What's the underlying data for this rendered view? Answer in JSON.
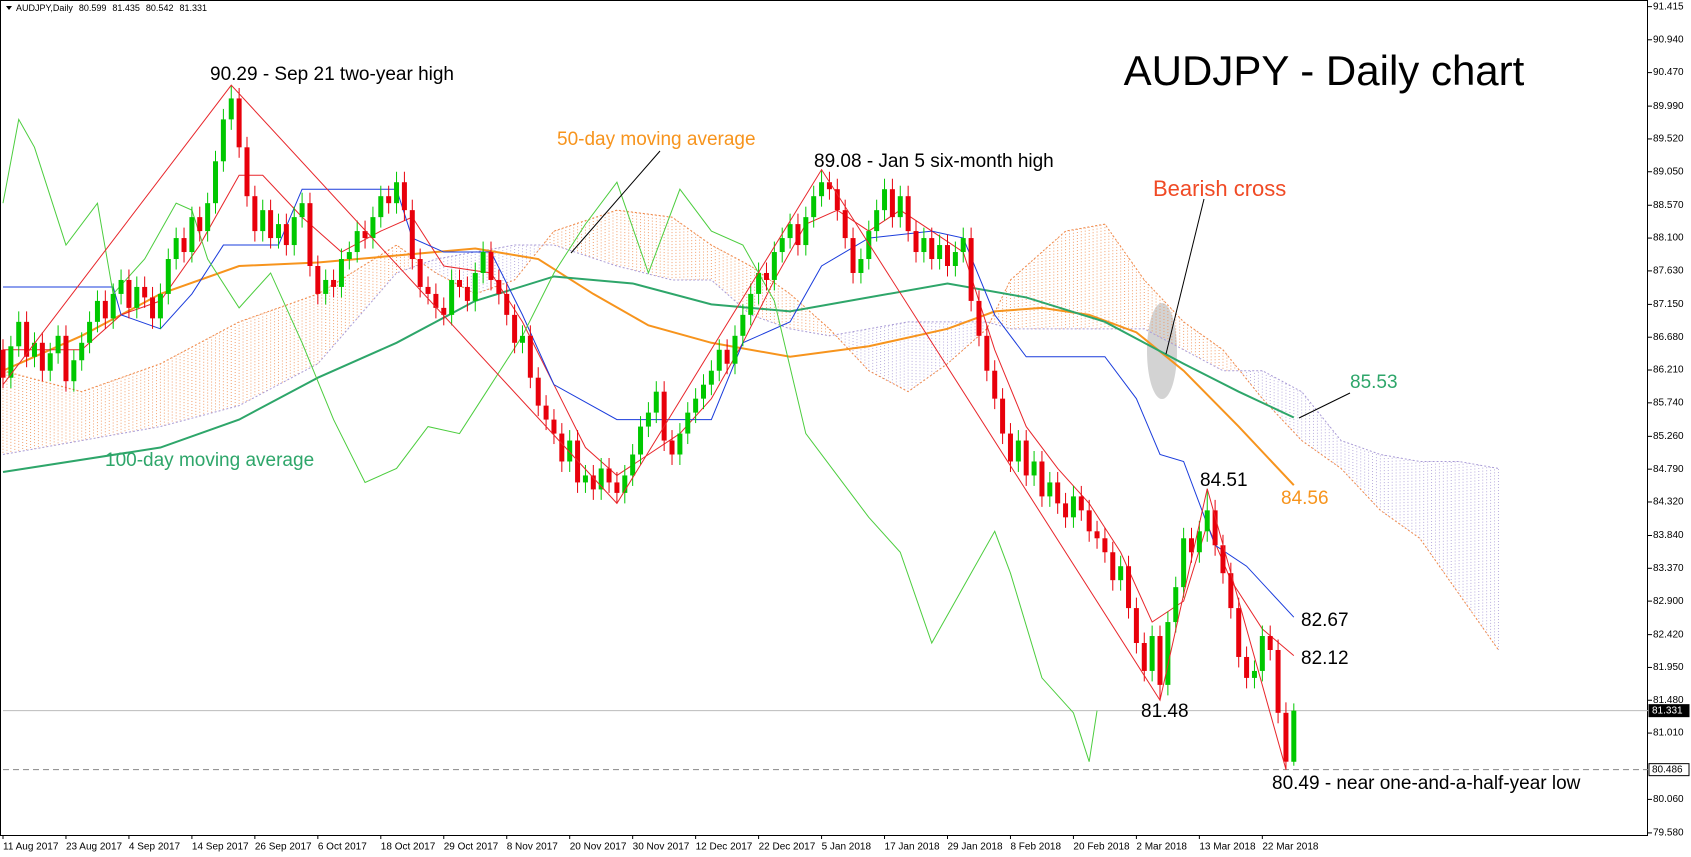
{
  "chart_data": {
    "type": "candlestick",
    "symbol": "AUDJPY,Daily",
    "title": "AUDJPY - Daily chart",
    "up_color": "#00c800",
    "down_color": "#e8000b",
    "open": [
      86.5,
      86.1,
      86.55,
      86.9,
      86.4,
      86.6,
      86.2,
      86.45,
      86.7,
      86.05,
      86.35,
      86.6,
      86.9,
      87.2,
      86.95,
      87.3,
      87.5,
      87.1,
      87.4,
      87.25,
      86.95,
      87.3,
      87.8,
      88.1,
      87.9,
      88.4,
      88.2,
      88.6,
      89.2,
      89.8,
      90.1,
      89.4,
      88.7,
      88.2,
      88.5,
      88.1,
      88.3,
      88.0,
      88.4,
      88.6,
      87.7,
      87.3,
      87.5,
      87.4,
      87.8,
      87.9,
      88.2,
      88.1,
      88.4,
      88.7,
      88.6,
      88.9,
      88.5,
      87.8,
      87.4,
      87.3,
      87.1,
      87.0,
      87.5,
      87.4,
      87.2,
      87.6,
      87.9,
      87.5,
      87.3,
      87.0,
      86.6,
      86.7,
      86.1,
      85.7,
      85.5,
      85.3,
      84.9,
      85.2,
      84.6,
      84.7,
      84.5,
      84.8,
      84.6,
      84.45,
      84.7,
      85.0,
      85.4,
      85.6,
      85.9,
      85.2,
      85.0,
      85.3,
      85.6,
      85.8,
      86.0,
      86.2,
      86.5,
      86.3,
      86.7,
      87.0,
      87.3,
      87.6,
      87.5,
      87.9,
      88.1,
      88.3,
      88.0,
      88.4,
      88.7,
      88.9,
      88.8,
      88.5,
      88.1,
      87.6,
      87.8,
      88.2,
      88.5,
      88.8,
      88.4,
      88.7,
      88.2,
      87.9,
      88.1,
      87.8,
      88.0,
      87.7,
      87.9,
      88.1,
      87.2,
      86.7,
      86.2,
      85.8,
      85.3,
      84.9,
      85.2,
      84.7,
      84.9,
      84.4,
      84.6,
      84.3,
      84.1,
      84.4,
      84.2,
      83.9,
      83.8,
      83.6,
      83.2,
      83.4,
      82.8,
      82.3,
      81.9,
      82.4,
      81.7,
      82.6,
      83.1,
      83.8,
      83.6,
      83.9,
      84.2,
      83.7,
      83.3,
      82.8,
      82.1,
      81.8,
      81.9,
      82.4,
      82.2,
      81.3,
      80.599
    ],
    "high": [
      86.65,
      86.7,
      87.05,
      87.05,
      86.75,
      86.75,
      86.6,
      86.85,
      86.85,
      86.5,
      86.75,
      87.05,
      87.35,
      87.35,
      87.45,
      87.65,
      87.65,
      87.55,
      87.55,
      87.4,
      87.45,
      87.95,
      88.25,
      88.25,
      88.55,
      88.55,
      88.75,
      89.35,
      89.95,
      90.29,
      90.25,
      89.55,
      88.85,
      88.65,
      88.65,
      88.45,
      88.45,
      88.55,
      88.75,
      88.75,
      87.85,
      87.65,
      87.65,
      87.95,
      88.05,
      88.35,
      88.35,
      88.55,
      88.85,
      88.85,
      89.05,
      89.05,
      88.65,
      87.95,
      87.55,
      87.45,
      87.25,
      87.65,
      87.65,
      87.55,
      87.75,
      88.05,
      88.05,
      87.65,
      87.45,
      87.15,
      86.85,
      86.85,
      86.25,
      85.85,
      85.65,
      85.45,
      85.35,
      85.35,
      84.85,
      84.85,
      84.95,
      84.95,
      84.75,
      84.85,
      85.15,
      85.55,
      85.75,
      86.05,
      86.05,
      85.35,
      85.45,
      85.75,
      85.95,
      86.15,
      86.35,
      86.65,
      86.65,
      86.85,
      87.15,
      87.45,
      87.75,
      87.75,
      88.05,
      88.25,
      88.45,
      88.45,
      88.55,
      88.85,
      89.08,
      89.05,
      88.95,
      88.65,
      88.25,
      87.95,
      88.35,
      88.65,
      88.95,
      88.95,
      88.85,
      88.85,
      88.35,
      88.25,
      88.25,
      88.15,
      88.15,
      88.05,
      88.25,
      88.25,
      87.35,
      86.85,
      86.35,
      85.95,
      85.45,
      85.35,
      85.35,
      85.05,
      85.05,
      84.75,
      84.75,
      84.45,
      84.55,
      84.55,
      84.35,
      84.05,
      83.95,
      83.75,
      83.55,
      83.55,
      82.95,
      82.45,
      82.55,
      82.55,
      82.75,
      83.25,
      83.95,
      83.95,
      84.05,
      84.51,
      84.35,
      83.85,
      83.45,
      82.95,
      82.25,
      82.05,
      82.55,
      82.55,
      82.35,
      81.45,
      81.435
    ],
    "low": [
      85.95,
      85.95,
      86.4,
      86.25,
      86.25,
      86.05,
      86.05,
      86.3,
      85.9,
      85.9,
      86.2,
      86.45,
      86.75,
      86.8,
      86.8,
      87.15,
      86.95,
      86.95,
      87.1,
      86.8,
      86.8,
      87.15,
      87.65,
      87.75,
      87.75,
      88.05,
      88.05,
      88.45,
      89.05,
      89.65,
      89.25,
      88.55,
      88.05,
      88.05,
      87.95,
      87.95,
      87.85,
      87.85,
      88.25,
      87.55,
      87.15,
      87.15,
      87.25,
      87.25,
      87.65,
      87.75,
      87.95,
      87.95,
      88.25,
      88.45,
      88.45,
      88.35,
      87.65,
      87.25,
      87.15,
      86.95,
      86.85,
      86.85,
      87.25,
      87.05,
      87.05,
      87.45,
      87.35,
      87.15,
      86.85,
      86.45,
      86.45,
      85.95,
      85.55,
      85.35,
      85.15,
      84.75,
      84.75,
      84.45,
      84.45,
      84.35,
      84.35,
      84.45,
      84.3,
      84.3,
      84.55,
      84.85,
      85.25,
      85.45,
      85.05,
      84.85,
      84.85,
      85.15,
      85.45,
      85.65,
      85.85,
      86.05,
      86.15,
      86.15,
      86.55,
      86.85,
      87.15,
      87.35,
      87.35,
      87.75,
      87.95,
      87.85,
      87.85,
      88.25,
      88.55,
      88.65,
      88.35,
      87.95,
      87.45,
      87.45,
      87.65,
      88.05,
      88.35,
      88.25,
      88.25,
      88.05,
      87.75,
      87.75,
      87.65,
      87.65,
      87.55,
      87.55,
      87.75,
      87.05,
      86.55,
      86.05,
      85.65,
      85.15,
      84.75,
      84.75,
      84.55,
      84.55,
      84.25,
      84.25,
      84.15,
      83.95,
      83.95,
      84.05,
      83.75,
      83.65,
      83.45,
      83.05,
      83.05,
      82.65,
      82.15,
      81.75,
      81.75,
      81.48,
      81.55,
      82.45,
      82.95,
      83.45,
      83.45,
      83.75,
      83.55,
      83.15,
      82.65,
      81.95,
      81.65,
      81.65,
      81.75,
      82.05,
      81.15,
      80.486,
      80.542
    ],
    "close": [
      86.1,
      86.55,
      86.9,
      86.4,
      86.6,
      86.2,
      86.45,
      86.7,
      86.05,
      86.35,
      86.6,
      86.9,
      87.2,
      86.95,
      87.3,
      87.5,
      87.1,
      87.4,
      87.25,
      86.95,
      87.3,
      87.8,
      88.1,
      87.9,
      88.4,
      88.2,
      88.6,
      89.2,
      89.8,
      90.1,
      89.4,
      88.7,
      88.2,
      88.5,
      88.1,
      88.3,
      88.0,
      88.4,
      88.6,
      87.7,
      87.3,
      87.5,
      87.4,
      87.8,
      87.9,
      88.2,
      88.1,
      88.4,
      88.7,
      88.6,
      88.9,
      88.5,
      87.8,
      87.4,
      87.3,
      87.1,
      87.0,
      87.5,
      87.4,
      87.2,
      87.6,
      87.9,
      87.5,
      87.3,
      87.0,
      86.6,
      86.7,
      86.1,
      85.7,
      85.5,
      85.3,
      84.9,
      85.2,
      84.6,
      84.7,
      84.5,
      84.8,
      84.6,
      84.45,
      84.7,
      85.0,
      85.4,
      85.6,
      85.9,
      85.2,
      85.0,
      85.3,
      85.6,
      85.8,
      86.0,
      86.2,
      86.5,
      86.3,
      86.7,
      87.0,
      87.3,
      87.6,
      87.5,
      87.9,
      88.1,
      88.3,
      88.0,
      88.4,
      88.7,
      88.9,
      88.8,
      88.5,
      88.1,
      87.6,
      87.8,
      88.2,
      88.5,
      88.8,
      88.4,
      88.7,
      88.2,
      87.9,
      88.1,
      87.8,
      88.0,
      87.7,
      87.9,
      88.1,
      87.2,
      86.7,
      86.2,
      85.8,
      85.3,
      84.9,
      85.2,
      84.7,
      84.9,
      84.4,
      84.6,
      84.3,
      84.1,
      84.4,
      84.2,
      83.9,
      83.8,
      83.6,
      83.2,
      83.4,
      82.8,
      82.3,
      81.9,
      82.4,
      81.7,
      82.6,
      83.1,
      83.8,
      83.6,
      83.9,
      84.2,
      83.7,
      83.3,
      82.8,
      82.1,
      81.8,
      81.9,
      82.4,
      82.2,
      81.3,
      80.6,
      81.331
    ],
    "lines": [
      {
        "color": "#f7941d",
        "width": 2,
        "x": [
          0,
          10,
          20,
          30,
          40,
          50,
          60,
          68,
          75,
          82,
          90,
          100,
          110,
          120,
          126,
          132,
          138,
          144,
          150,
          157,
          164
        ],
        "values": [
          86.2,
          86.7,
          87.3,
          87.7,
          87.75,
          87.85,
          87.95,
          87.8,
          87.3,
          86.85,
          86.6,
          86.4,
          86.55,
          86.8,
          87.05,
          87.1,
          87.0,
          86.75,
          86.2,
          85.4,
          84.56
        ]
      },
      {
        "color": "#2ea66a",
        "width": 2,
        "x": [
          0,
          20,
          30,
          40,
          50,
          60,
          70,
          80,
          90,
          100,
          110,
          120,
          130,
          140,
          150,
          157,
          164
        ],
        "values": [
          84.75,
          85.1,
          85.5,
          86.1,
          86.6,
          87.2,
          87.55,
          87.45,
          87.15,
          87.05,
          87.25,
          87.45,
          87.25,
          86.9,
          86.3,
          85.9,
          85.53
        ]
      },
      {
        "color": "#e8262b",
        "width": 1,
        "x": [
          0,
          5,
          10,
          15,
          20,
          25,
          30,
          33,
          38,
          43,
          48,
          52,
          56,
          62,
          66,
          70,
          74,
          78,
          82,
          86,
          90,
          94,
          98,
          102,
          106,
          110,
          114,
          118,
          122,
          126,
          130,
          134,
          138,
          142,
          146,
          150,
          153,
          156,
          160,
          164
        ],
        "values": [
          86.5,
          86.5,
          86.5,
          87.0,
          87.2,
          88.0,
          89.0,
          89.0,
          88.4,
          87.9,
          88.2,
          88.4,
          87.7,
          87.6,
          86.9,
          86.0,
          85.1,
          84.7,
          85.0,
          85.3,
          85.8,
          86.6,
          87.5,
          88.3,
          88.5,
          88.2,
          88.5,
          88.2,
          87.9,
          86.5,
          85.4,
          84.8,
          84.3,
          83.6,
          82.6,
          82.9,
          84.0,
          83.2,
          82.5,
          82.12
        ]
      },
      {
        "color": "#1a3cdc",
        "width": 1,
        "x": [
          0,
          14,
          15,
          20,
          24,
          28,
          35,
          38,
          50,
          52,
          56,
          62,
          66,
          70,
          78,
          90,
          94,
          100,
          104,
          110,
          118,
          122,
          126,
          130,
          140,
          144,
          147,
          150,
          154,
          158,
          164
        ],
        "values": [
          87.4,
          87.4,
          87.0,
          86.8,
          87.3,
          88.0,
          88.0,
          88.8,
          88.8,
          88.1,
          87.9,
          87.9,
          87.0,
          86.0,
          85.5,
          85.5,
          86.6,
          86.9,
          87.7,
          88.1,
          88.2,
          88.1,
          87.0,
          86.4,
          86.4,
          85.8,
          85.0,
          84.9,
          83.7,
          83.4,
          82.67
        ]
      },
      {
        "color": "#4ccd3e",
        "width": 1,
        "x": [
          0,
          2,
          4,
          8,
          12,
          14,
          18,
          22,
          24,
          26,
          30,
          34,
          38,
          42,
          46,
          50,
          54,
          58,
          62,
          66,
          70,
          74,
          78,
          82,
          86,
          90,
          94,
          98,
          102,
          106,
          110,
          114,
          118,
          122,
          126,
          128,
          132,
          136,
          138,
          139
        ],
        "values": [
          88.6,
          89.8,
          89.4,
          88.0,
          88.6,
          87.3,
          87.8,
          88.6,
          88.5,
          87.8,
          87.1,
          87.6,
          86.6,
          85.5,
          84.6,
          84.8,
          85.4,
          85.3,
          86.0,
          86.7,
          87.6,
          88.3,
          88.9,
          87.6,
          88.8,
          88.2,
          88.0,
          87.2,
          85.3,
          84.7,
          84.1,
          83.6,
          82.3,
          83.1,
          83.9,
          83.3,
          81.8,
          81.3,
          80.6,
          81.33
        ]
      }
    ],
    "cloud": {
      "bull_color": "#f08a4b",
      "bear_color": "#a99bd6",
      "x": [
        0,
        10,
        20,
        30,
        40,
        50,
        55,
        60,
        65,
        70,
        78,
        85,
        90,
        95,
        100,
        105,
        110,
        115,
        120,
        125,
        128,
        135,
        140,
        145,
        150,
        155,
        160,
        165,
        170,
        175,
        180,
        185,
        190
      ],
      "span_a": [
        86.2,
        85.9,
        86.3,
        86.9,
        87.3,
        88.0,
        87.6,
        87.3,
        87.5,
        88.2,
        88.5,
        88.4,
        88.0,
        87.7,
        87.3,
        86.8,
        86.2,
        85.9,
        86.3,
        86.8,
        87.5,
        88.2,
        88.3,
        87.5,
        86.9,
        86.5,
        85.8,
        85.2,
        84.8,
        84.2,
        83.8,
        83.0,
        82.2
      ],
      "span_b": [
        85.0,
        85.2,
        85.4,
        85.7,
        86.3,
        87.6,
        87.8,
        87.9,
        88.0,
        88.0,
        87.7,
        87.5,
        87.5,
        87.0,
        86.8,
        86.7,
        86.8,
        86.9,
        86.9,
        86.9,
        86.8,
        86.8,
        86.8,
        86.8,
        86.5,
        86.2,
        86.2,
        85.9,
        85.2,
        85.0,
        84.9,
        84.9,
        84.8
      ]
    },
    "zigzag": {
      "color": "#e8262b",
      "x": [
        0,
        29,
        78,
        104,
        147,
        153,
        163
      ],
      "values": [
        86.0,
        90.29,
        84.3,
        89.08,
        81.48,
        84.51,
        80.49
      ]
    },
    "price_lines": [
      {
        "value": 81.331,
        "color": "#bbbbbb",
        "dash": false
      },
      {
        "value": 80.486,
        "color": "#888888",
        "dash": true
      }
    ],
    "annotations": [
      {
        "text": "90.29 - Sep 21 two-year high",
        "color": "#000000"
      },
      {
        "text": "50-day moving average",
        "color": "#f7941d"
      },
      {
        "text": "89.08 - Jan 5 six-month high",
        "color": "#000000"
      },
      {
        "text": "Bearish cross",
        "color": "#f04a25"
      },
      {
        "text": "85.53",
        "color": "#2ea66a"
      },
      {
        "text": "100-day moving average",
        "color": "#2ea66a"
      },
      {
        "text": "84.51",
        "color": "#000000"
      },
      {
        "text": "84.56",
        "color": "#f7941d"
      },
      {
        "text": "82.67",
        "color": "#000000"
      },
      {
        "text": "82.12",
        "color": "#000000"
      },
      {
        "text": "81.48",
        "color": "#000000"
      },
      {
        "text": "80.49 - near one-and-a-half-year low",
        "color": "#000000"
      }
    ],
    "xlim": [
      0,
      209
    ],
    "ylim": [
      79.55,
      91.51
    ],
    "xticks": [
      {
        "value": 0,
        "label": "11 Aug 2017"
      },
      {
        "value": 8,
        "label": "23 Aug 2017"
      },
      {
        "value": 16,
        "label": "4 Sep 2017"
      },
      {
        "value": 24,
        "label": "14 Sep 2017"
      },
      {
        "value": 32,
        "label": "26 Sep 2017"
      },
      {
        "value": 40,
        "label": "6 Oct 2017"
      },
      {
        "value": 48,
        "label": "18 Oct 2017"
      },
      {
        "value": 56,
        "label": "29 Oct 2017"
      },
      {
        "value": 64,
        "label": "8 Nov 2017"
      },
      {
        "value": 72,
        "label": "20 Nov 2017"
      },
      {
        "value": 80,
        "label": "30 Nov 2017"
      },
      {
        "value": 88,
        "label": "12 Dec 2017"
      },
      {
        "value": 96,
        "label": "22 Dec 2017"
      },
      {
        "value": 104,
        "label": "5 Jan 2018"
      },
      {
        "value": 112,
        "label": "17 Jan 2018"
      },
      {
        "value": 120,
        "label": "29 Jan 2018"
      },
      {
        "value": 128,
        "label": "8 Feb 2018"
      },
      {
        "value": 136,
        "label": "20 Feb 2018"
      },
      {
        "value": 144,
        "label": "2 Mar 2018"
      },
      {
        "value": 152,
        "label": "13 Mar 2018"
      },
      {
        "value": 160,
        "label": "22 Mar 2018"
      }
    ],
    "yticks": [
      91.415,
      {
        "value": 90.94,
        "label": "90.940"
      },
      {
        "value": 90.47,
        "label": "90.470"
      },
      {
        "value": 89.99,
        "label": "89.990"
      },
      {
        "value": 89.52,
        "label": "89.520"
      },
      {
        "value": 89.05,
        "label": "89.050"
      },
      {
        "value": 88.57,
        "label": "88.570"
      },
      {
        "value": 88.1,
        "label": "88.100"
      },
      {
        "value": 87.63,
        "label": "87.630"
      },
      {
        "value": 87.15,
        "label": "87.150"
      },
      {
        "value": 86.68,
        "label": "86.680"
      },
      {
        "value": 86.21,
        "label": "86.210"
      },
      {
        "value": 85.74,
        "label": "85.740"
      },
      {
        "value": 85.26,
        "label": "85.260"
      },
      {
        "value": 84.79,
        "label": "84.790"
      },
      {
        "value": 84.32,
        "label": "84.320"
      },
      {
        "value": 83.84,
        "label": "83.840"
      },
      {
        "value": 83.37,
        "label": "83.370"
      },
      {
        "value": 82.9,
        "label": "82.900"
      },
      {
        "value": 82.42,
        "label": "82.420"
      },
      {
        "value": 81.95,
        "label": "81.950"
      },
      {
        "value": 81.48,
        "label": "81.480"
      },
      {
        "value": 81.01,
        "label": "81.010"
      },
      {
        "value": 80.06,
        "label": "80.060"
      },
      {
        "value": 79.58,
        "label": "79.580"
      }
    ]
  }
}
